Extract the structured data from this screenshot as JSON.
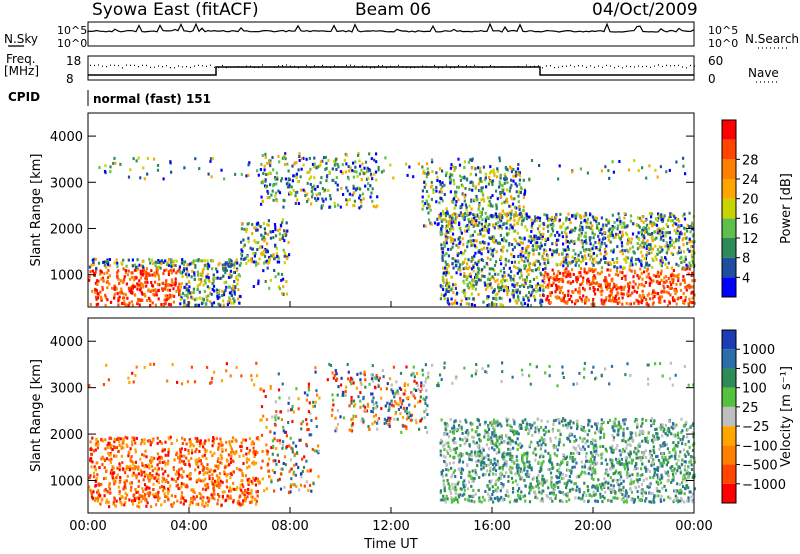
{
  "header": {
    "station": "Syowa East (fitACF)",
    "beam": "Beam 06",
    "date": "04/Oct/2009"
  },
  "top_panels": {
    "nsky_label": "N.Sky",
    "nsky_ticks": [
      "10^5",
      "10^0"
    ],
    "nsearch_label": "N.Search",
    "nsearch_ticks": [
      "10^5",
      "10^0"
    ],
    "freq_label": "Freq.",
    "freq_unit": "[MHz]",
    "freq_ticks": [
      "18",
      "8"
    ],
    "nave_label": "Nave",
    "nave_ticks": [
      "60",
      "0"
    ],
    "cpid_label": "CPID",
    "cpid_value": "normal (fast) 151"
  },
  "colors": {
    "power_bar": [
      "#0000ff",
      "#1f4e9e",
      "#2e8b57",
      "#5fbf4a",
      "#c8d400",
      "#ffa500",
      "#ff7f00",
      "#ff4500",
      "#ff0000"
    ],
    "velocity_bar": [
      "#1e3cb4",
      "#2a6fa8",
      "#2e8b57",
      "#55c23c",
      "#bfbfbf",
      "#ffa500",
      "#ff7f00",
      "#ff4500",
      "#ff0000"
    ]
  },
  "chart_data": [
    {
      "type": "heatmap",
      "title": "Power",
      "ylabel": "Slant Range [km]",
      "xlabel": "Time UT",
      "x_ticks": [
        "00:00",
        "04:00",
        "08:00",
        "12:00",
        "16:00",
        "20:00",
        "00:00"
      ],
      "y_ticks": [
        "1000",
        "2000",
        "3000",
        "4000"
      ],
      "ylim": [
        300,
        4500
      ],
      "colorbar_label": "Power [dB]",
      "colorbar_ticks": [
        "4",
        "8",
        "12",
        "16",
        "20",
        "24",
        "28"
      ]
    },
    {
      "type": "heatmap",
      "title": "Velocity",
      "ylabel": "Slant Range [km]",
      "xlabel": "Time UT",
      "x_ticks": [
        "00:00",
        "04:00",
        "08:00",
        "12:00",
        "16:00",
        "20:00",
        "00:00"
      ],
      "y_ticks": [
        "1000",
        "2000",
        "3000",
        "4000"
      ],
      "ylim": [
        300,
        4500
      ],
      "colorbar_label": "Velocity [m s⁻¹]",
      "colorbar_ticks": [
        "1000",
        "500",
        "100",
        "25",
        "−25",
        "−100",
        "−500",
        "−1000"
      ]
    }
  ]
}
